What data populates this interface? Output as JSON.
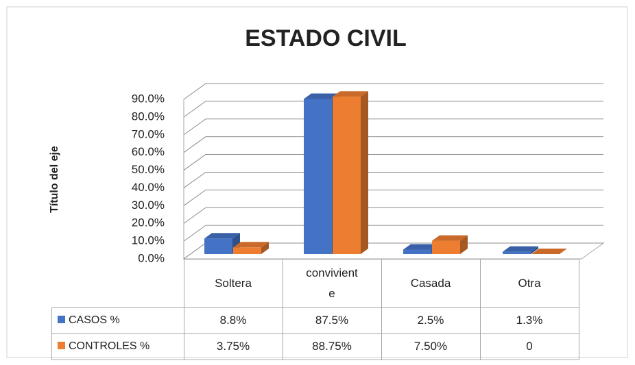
{
  "chart_data": {
    "type": "bar3d",
    "title": "ESTADO CIVIL",
    "y_label": "Título del eje",
    "categories": [
      "Soltera",
      "conviviente",
      "Casada",
      "Otra"
    ],
    "series": [
      {
        "name": "CASOS %",
        "color": "#4472c4",
        "values": [
          8.8,
          87.5,
          2.5,
          1.3
        ],
        "value_labels": [
          "8.8%",
          "87.5%",
          "2.5%",
          "1.3%"
        ]
      },
      {
        "name": "CONTROLES %",
        "color": "#ed7d31",
        "values": [
          3.75,
          88.75,
          7.5,
          0
        ],
        "value_labels": [
          "3.75%",
          "88.75%",
          "7.50%",
          "0"
        ]
      }
    ],
    "ylim": [
      0,
      90
    ],
    "yticks": [
      {
        "value": 0,
        "label": "0.0%"
      },
      {
        "value": 10,
        "label": "10.0%"
      },
      {
        "value": 20,
        "label": "20.0%"
      },
      {
        "value": 30,
        "label": "30.0%"
      },
      {
        "value": 40,
        "label": "40.0%"
      },
      {
        "value": 50,
        "label": "50.0%"
      },
      {
        "value": 60,
        "label": "60.0%"
      },
      {
        "value": 70,
        "label": "70.0%"
      },
      {
        "value": 80,
        "label": "80.0%"
      },
      {
        "value": 90,
        "label": "90.0%"
      }
    ],
    "grid": true
  }
}
